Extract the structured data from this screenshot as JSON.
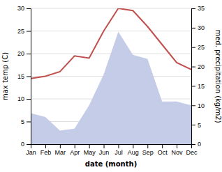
{
  "chart_data": {
    "type": "line",
    "xlabel": "date (month)",
    "ylabel": "max temp (C)",
    "y2label": "med. precipitation (kg/m2)",
    "categories": [
      "Jan",
      "Feb",
      "Mar",
      "Apr",
      "May",
      "Jun",
      "Jul",
      "Aug",
      "Sep",
      "Oct",
      "Nov",
      "Dec"
    ],
    "series": [
      {
        "type": "area",
        "color": "#c5cce8",
        "axis": "y2",
        "values": [
          8.0,
          7.0,
          3.5,
          4.0,
          10.0,
          18.0,
          29.0,
          23.0,
          22.0,
          11.0,
          11.0,
          10.0
        ]
      },
      {
        "type": "line",
        "color": "#c0504d",
        "values": [
          14.5,
          15.0,
          16.0,
          19.5,
          19.0,
          25.0,
          30.0,
          29.5,
          26.0,
          22.0,
          18.0,
          16.5
        ]
      }
    ],
    "ylim": [
      0,
      30
    ],
    "yticks": [
      0,
      5,
      10,
      15,
      20,
      25,
      30
    ],
    "y2lim": [
      0,
      35
    ],
    "y2ticks": [
      0,
      5,
      10,
      15,
      20,
      25,
      30,
      35
    ],
    "grid": true
  }
}
